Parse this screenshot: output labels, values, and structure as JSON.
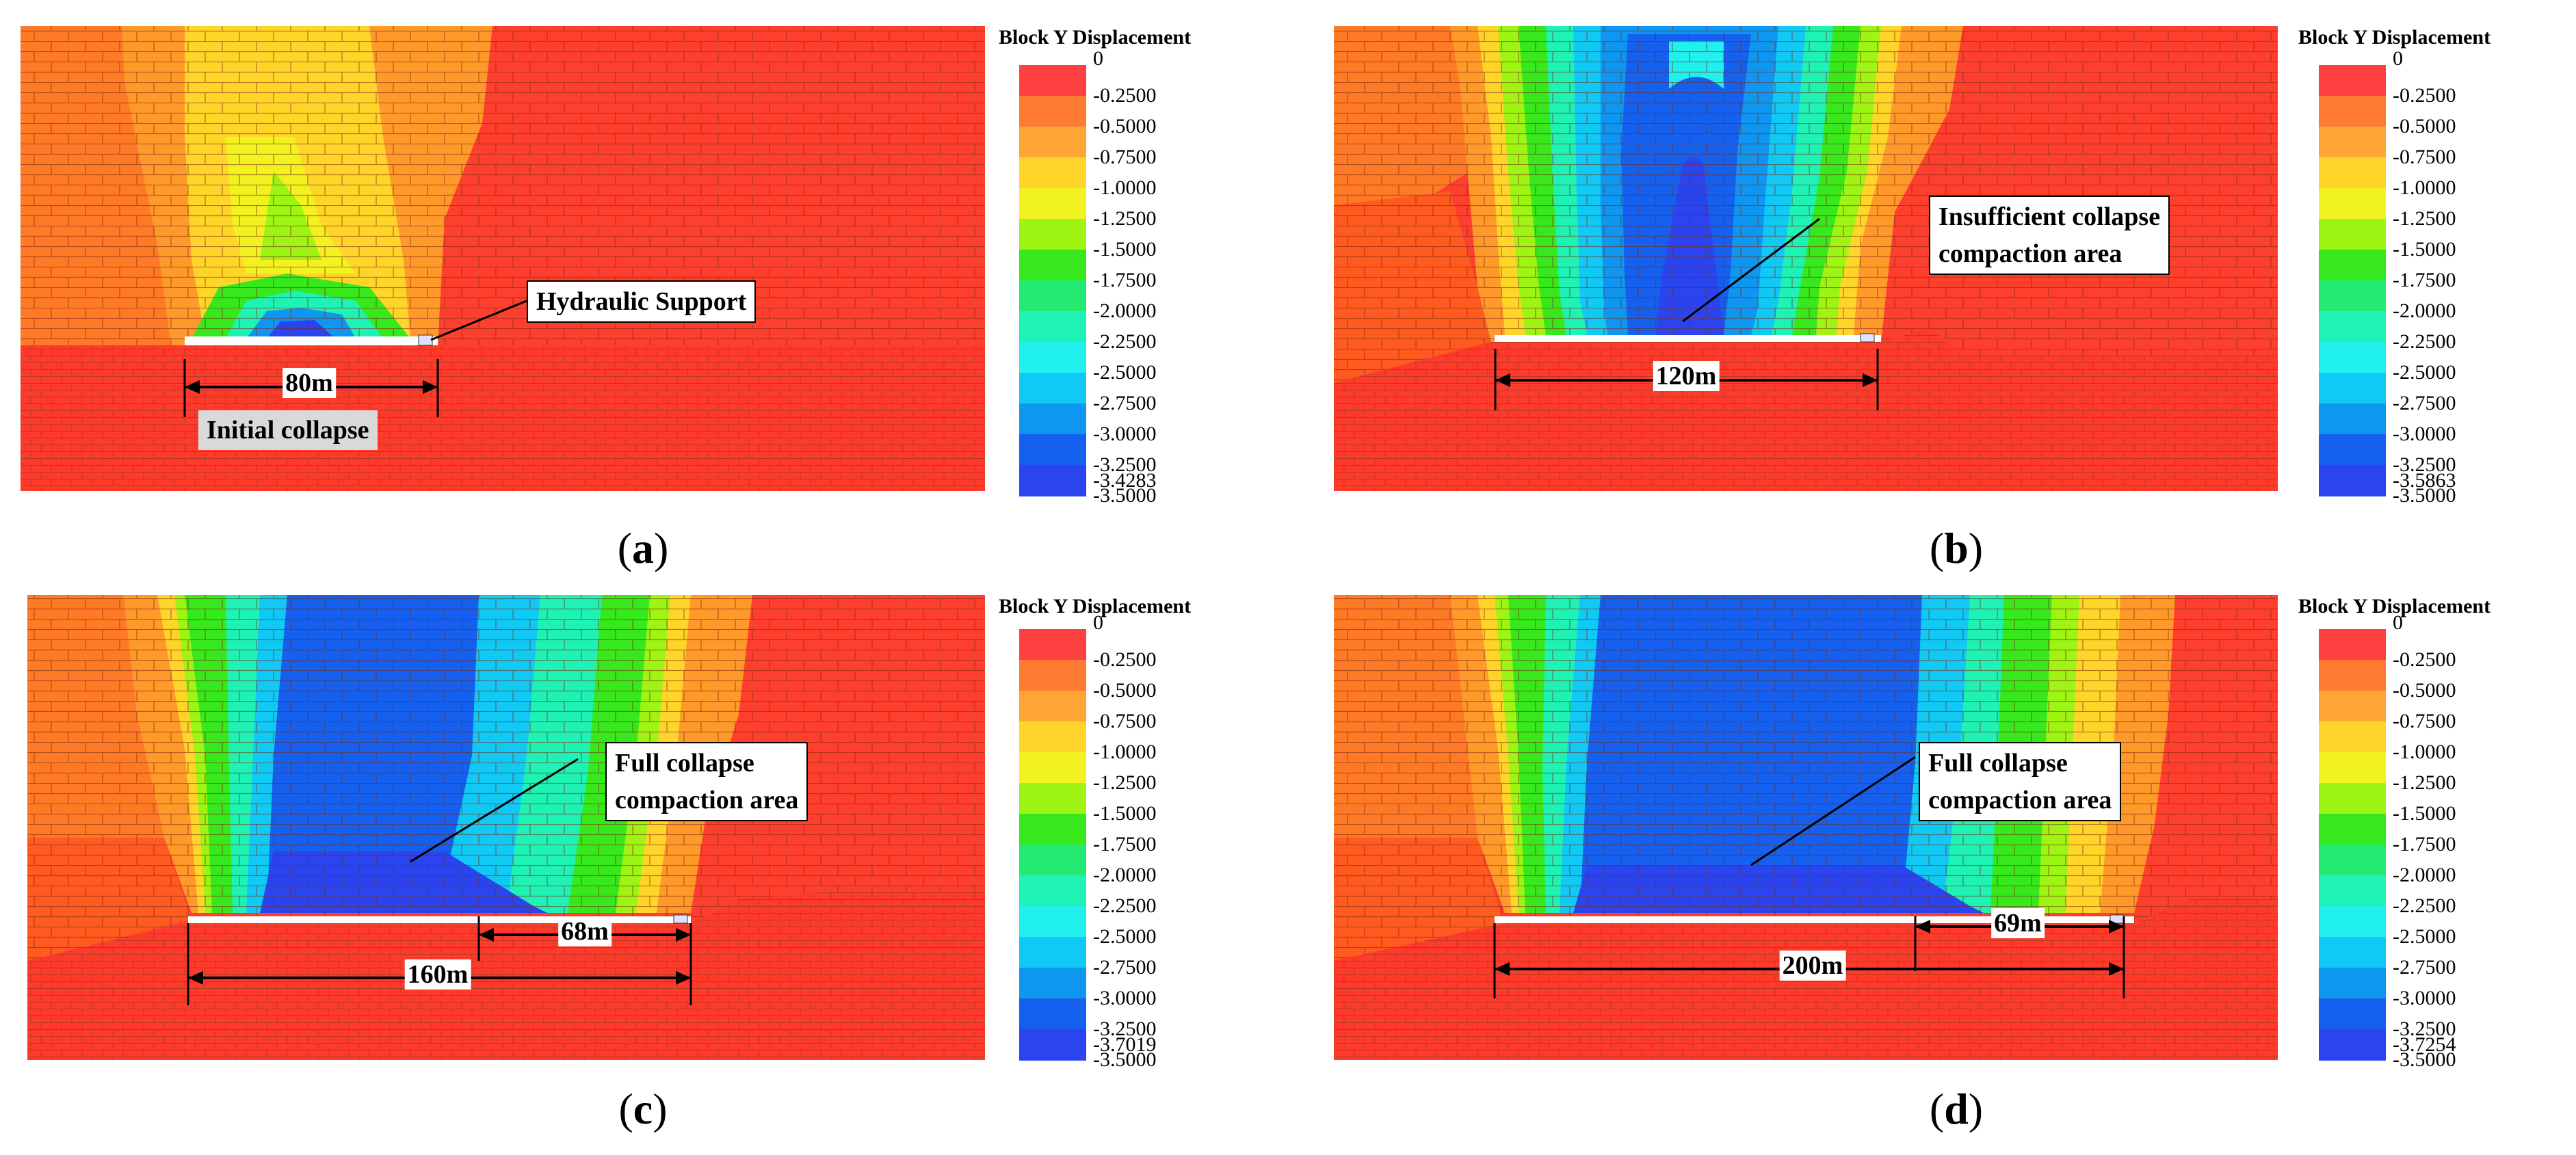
{
  "legend": {
    "title": "Block Y Displacement",
    "colors": [
      "#ff4040",
      "#ff7b33",
      "#ffa535",
      "#ffd52a",
      "#f1f21f",
      "#9ef513",
      "#37e81c",
      "#22ea72",
      "#1ff2b5",
      "#20f0ee",
      "#11c9f5",
      "#0f96f1",
      "#1560ef",
      "#2a45ef"
    ],
    "labels": [
      "0",
      "-0.2500",
      "-0.5000",
      "-0.7500",
      "-1.0000",
      "-1.2500",
      "-1.5000",
      "-1.7500",
      "-2.0000",
      "-2.2500",
      "-2.5000",
      "-2.7500",
      "-3.0000",
      "-3.2500",
      "-3.5000"
    ]
  },
  "panels": [
    {
      "id": "a",
      "label": "a",
      "min_label": "-3.4283",
      "dims": [
        "80m"
      ],
      "callouts": [
        "Hydraulic Support",
        "Initial collapse"
      ]
    },
    {
      "id": "b",
      "label": "b",
      "min_label": "-3.5863",
      "dims": [
        "120m"
      ],
      "callouts": [
        "Insufficient collapse",
        "compaction area"
      ]
    },
    {
      "id": "c",
      "label": "c",
      "min_label": "-3.7019",
      "dims": [
        "160m",
        "68m"
      ],
      "callouts": [
        "Full collapse",
        "compaction area"
      ]
    },
    {
      "id": "d",
      "label": "d",
      "min_label": "-3.7254",
      "dims": [
        "200m",
        "69m"
      ],
      "callouts": [
        "Full collapse",
        "compaction area"
      ]
    }
  ]
}
